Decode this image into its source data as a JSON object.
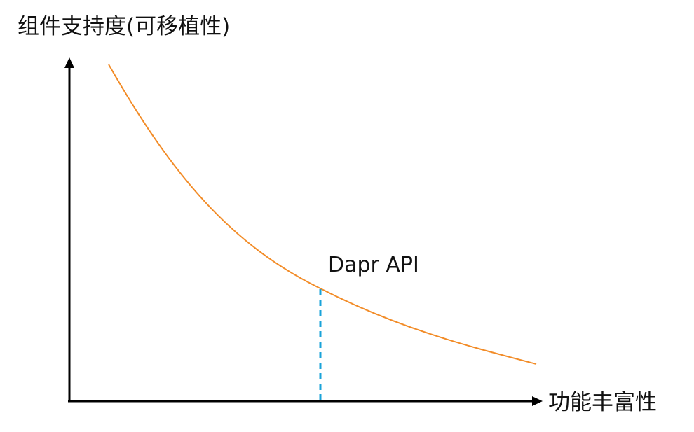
{
  "diagram": {
    "y_axis_label": "组件支持度(可移植性)",
    "x_axis_label": "功能丰富性",
    "point_label": "Dapr API"
  },
  "colors": {
    "curve": "#f28c28",
    "marker": "#1aa3d9",
    "axis": "#000000"
  }
}
